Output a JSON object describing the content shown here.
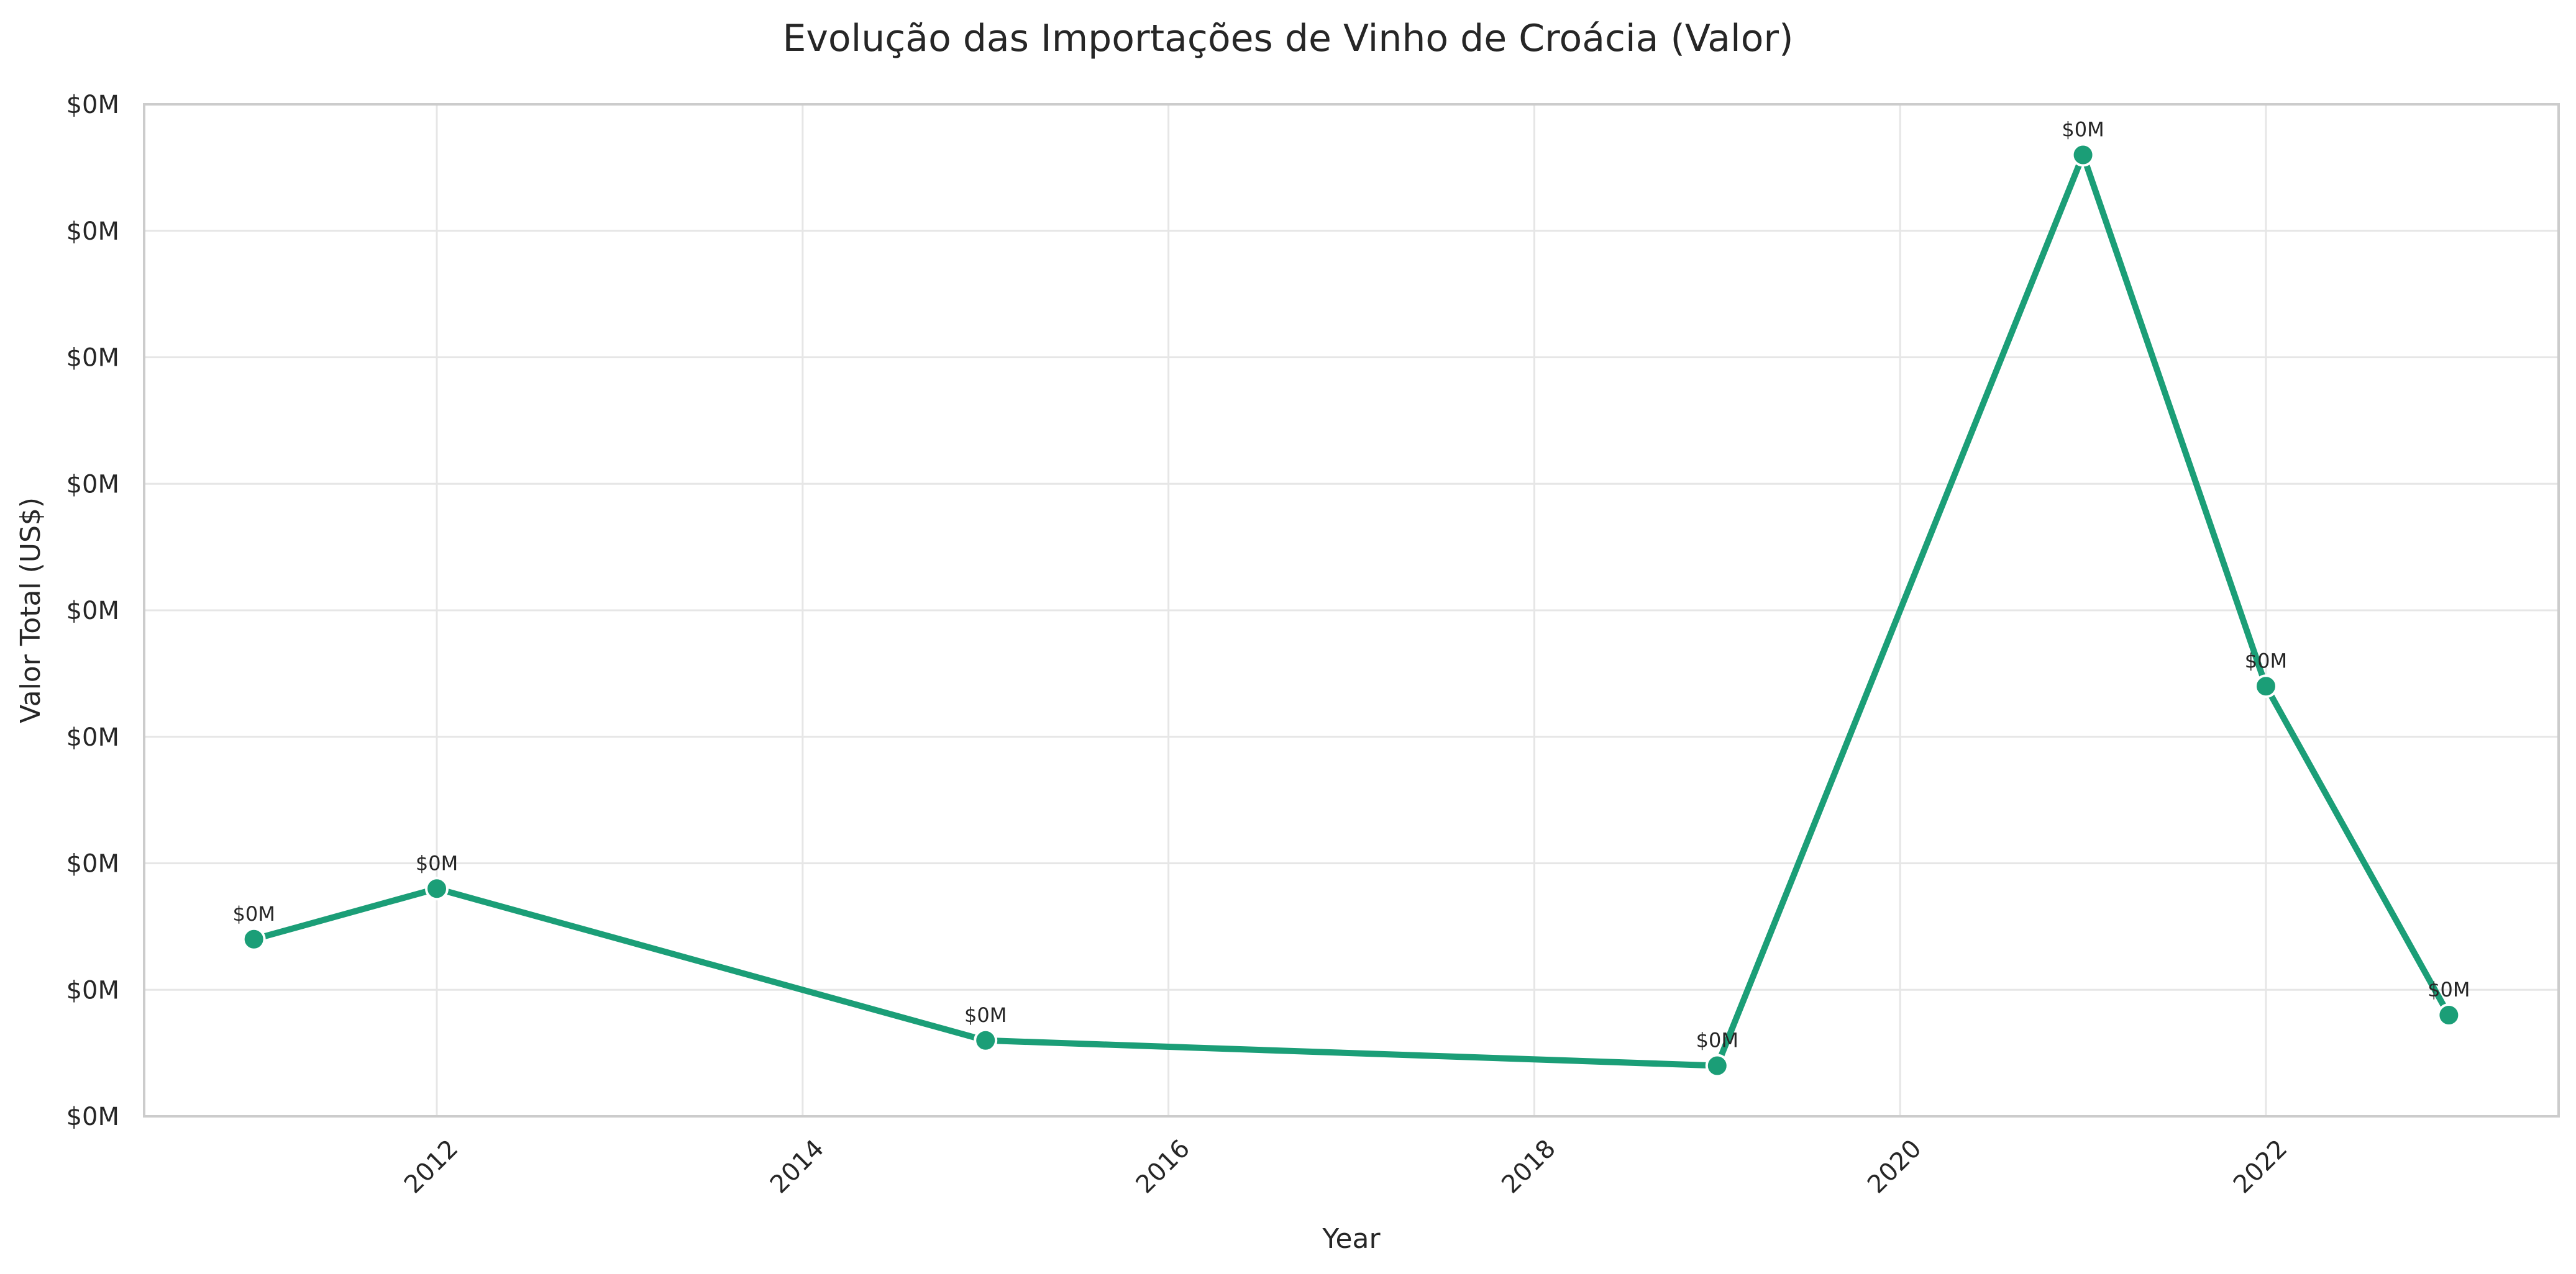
{
  "chart_data": {
    "type": "line",
    "title": "Evolução das Importações de Vinho de Croácia (Valor)",
    "xlabel": "Year",
    "ylabel": "Valor Total (US$)",
    "x": [
      2011,
      2012,
      2015,
      2019,
      2021,
      2022,
      2023
    ],
    "series": [
      {
        "values": [
          0.12,
          0.14,
          0.08,
          0.07,
          0.43,
          0.22,
          0.09
        ],
        "point_labels": [
          "$0M",
          "$0M",
          "$0M",
          "$0M",
          "$0M",
          "$0M",
          "$0M"
        ]
      }
    ],
    "xlim": [
      2010.4,
      2023.6
    ],
    "ylim": [
      0.05,
      0.45
    ],
    "x_ticks": [
      2012,
      2014,
      2016,
      2018,
      2020,
      2022
    ],
    "x_tick_labels": [
      "2012",
      "2014",
      "2016",
      "2018",
      "2020",
      "2022"
    ],
    "y_ticks": [
      0.05,
      0.1,
      0.15,
      0.2,
      0.25,
      0.3,
      0.35,
      0.4,
      0.45
    ],
    "y_tick_labels": [
      "$0M",
      "$0M",
      "$0M",
      "$0M",
      "$0M",
      "$0M",
      "$0M",
      "$0M",
      "$0M"
    ],
    "grid": true,
    "x_tick_rotation_deg": 45,
    "colors": {
      "line": "#1b9e77",
      "marker_edge": "#ffffff",
      "grid": "#e6e6e6",
      "frame": "#cccccc",
      "text": "#262626"
    }
  }
}
